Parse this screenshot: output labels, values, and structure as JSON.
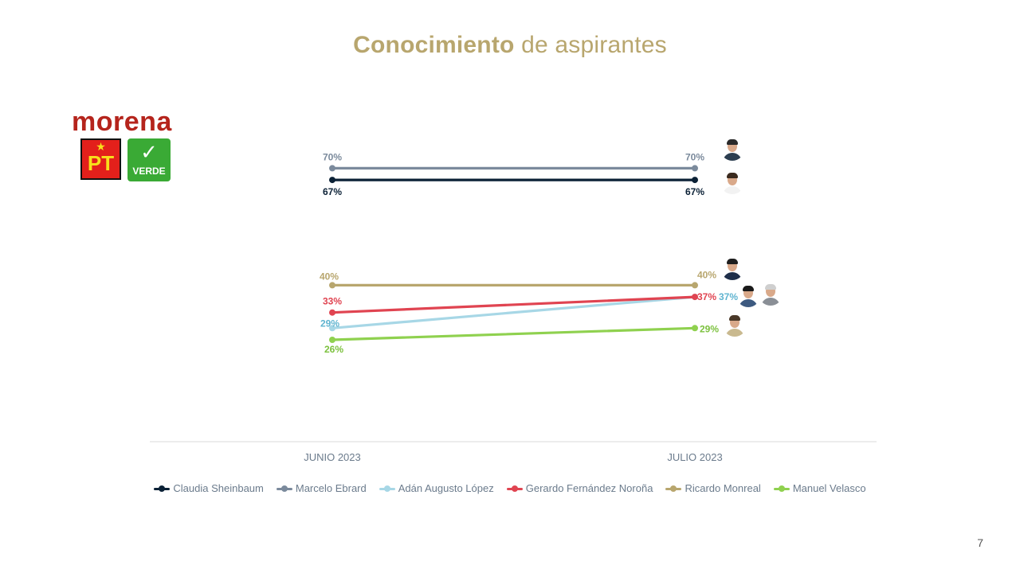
{
  "title": {
    "bold": "Conocimiento",
    "rest": "de aspirantes",
    "color": "#b8a66e"
  },
  "logos": {
    "morena": "morena",
    "morena_color": "#b5241c",
    "pt": "PT",
    "pt_star": "★",
    "pt_bg": "#e3201b",
    "pt_text_color": "#f7e11b",
    "verde": "VERDE",
    "verde_mark": "✓",
    "verde_bg": "#3aaa35"
  },
  "chart_data": {
    "type": "line",
    "title": "",
    "xlabel": "",
    "ylabel": "",
    "categories": [
      "JUNIO 2023",
      "JULIO 2023"
    ],
    "ylim": [
      0,
      100
    ],
    "grid": false,
    "legend_position": "bottom",
    "series": [
      {
        "name": "Claudia Sheinbaum",
        "values": [
          67,
          67
        ],
        "labels": [
          "67%",
          "67%"
        ],
        "color": "#0b2136"
      },
      {
        "name": "Marcelo Ebrard",
        "values": [
          70,
          70
        ],
        "labels": [
          "70%",
          "70%"
        ],
        "color": "#7b8a9c"
      },
      {
        "name": "Adán Augusto López",
        "values": [
          29,
          37
        ],
        "labels": [
          "29%",
          "37%"
        ],
        "color": "#a7d7e6",
        "label_color": "#5fb4d0"
      },
      {
        "name": "Gerardo Fernández Noroña",
        "values": [
          33,
          37
        ],
        "labels": [
          "33%",
          "37%"
        ],
        "color": "#e04451"
      },
      {
        "name": "Ricardo Monreal",
        "values": [
          40,
          40
        ],
        "labels": [
          "40%",
          "40%"
        ],
        "color": "#b8a66e"
      },
      {
        "name": "Manuel Velasco",
        "values": [
          26,
          29
        ],
        "labels": [
          "26%",
          "29%"
        ],
        "color": "#8fd14f",
        "label_color": "#7cc13e"
      }
    ]
  },
  "avatars": [
    {
      "name": "marcelo-ebrard-photo",
      "hair": "#2a2a2a",
      "body": "#2c3e50"
    },
    {
      "name": "claudia-sheinbaum-photo",
      "hair": "#3a2a1e",
      "body": "#f2f2f2"
    },
    {
      "name": "ricardo-monreal-photo",
      "hair": "#1e1e1e",
      "body": "#1f2f4a"
    },
    {
      "name": "gerardo-fernandez-norona-photo",
      "hair": "#cfcfcf",
      "body": "#8a8f96"
    },
    {
      "name": "adan-augusto-lopez-photo",
      "hair": "#1a1a1a",
      "body": "#3d5a80"
    },
    {
      "name": "manuel-velasco-photo",
      "hair": "#4a3828",
      "body": "#c9b98f"
    }
  ],
  "page_number": "7"
}
